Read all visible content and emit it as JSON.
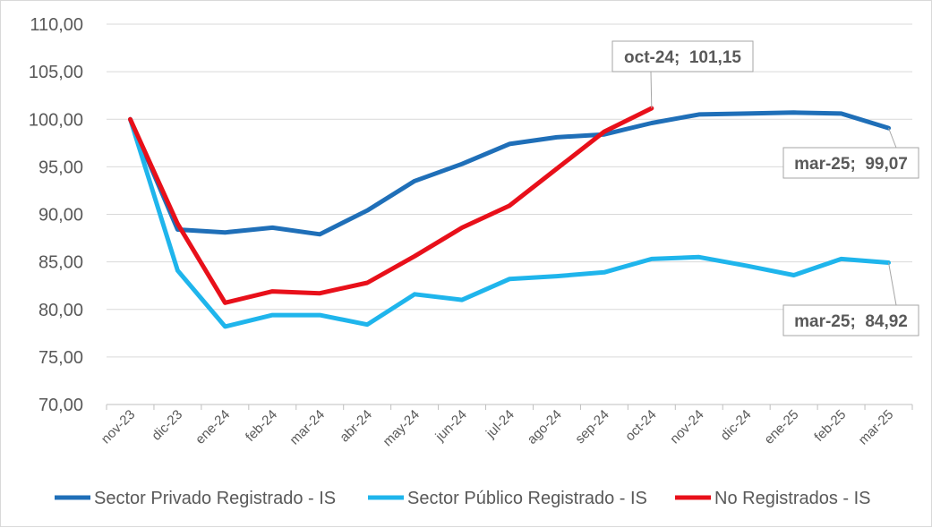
{
  "chart_data": {
    "type": "line",
    "categories": [
      "nov-23",
      "dic-23",
      "ene-24",
      "feb-24",
      "mar-24",
      "abr-24",
      "may-24",
      "jun-24",
      "jul-24",
      "ago-24",
      "sep-24",
      "oct-24",
      "nov-24",
      "dic-24",
      "ene-25",
      "feb-25",
      "mar-25"
    ],
    "ylim": [
      70,
      110
    ],
    "yticks": [
      "70,00",
      "75,00",
      "80,00",
      "85,00",
      "90,00",
      "95,00",
      "100,00",
      "105,00",
      "110,00"
    ],
    "ytick_values": [
      70,
      75,
      80,
      85,
      90,
      95,
      100,
      105,
      110
    ],
    "grid": true,
    "legend_position": "bottom",
    "series": [
      {
        "name": "Sector Privado Registrado - IS",
        "color": "#1f6fb8",
        "values": [
          100,
          88.4,
          88.1,
          88.6,
          87.9,
          90.4,
          93.5,
          95.3,
          97.4,
          98.1,
          98.4,
          99.6,
          100.5,
          100.6,
          100.7,
          100.6,
          99.07
        ]
      },
      {
        "name": "Sector Público Registrado - IS",
        "color": "#1fb5ec",
        "values": [
          100,
          84.1,
          78.2,
          79.4,
          79.4,
          78.4,
          81.6,
          81.0,
          83.2,
          83.5,
          83.9,
          85.3,
          85.5,
          84.6,
          83.6,
          85.3,
          84.92
        ]
      },
      {
        "name": "No Registrados - IS",
        "color": "#e8101a",
        "values": [
          100,
          89.0,
          80.7,
          81.9,
          81.7,
          82.8,
          85.6,
          88.6,
          90.9,
          94.8,
          98.7,
          101.15,
          null,
          null,
          null,
          null,
          null
        ]
      }
    ],
    "annotations": [
      {
        "label": "oct-24;  101,15",
        "series_index": 2,
        "category_index": 11
      },
      {
        "label": "mar-25;  99,07",
        "series_index": 0,
        "category_index": 16
      },
      {
        "label": "mar-25;  84,92",
        "series_index": 1,
        "category_index": 16
      }
    ]
  }
}
